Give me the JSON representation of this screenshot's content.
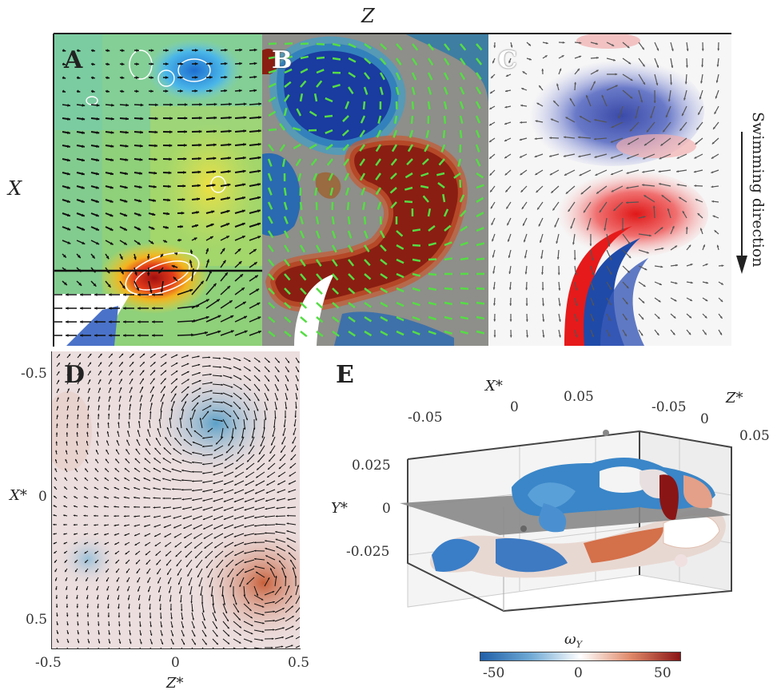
{
  "figure": {
    "top_axis_label": "Z",
    "left_axis_label": "X",
    "swimming_label": "Swimming direction"
  },
  "panels": {
    "A": {
      "label": "A"
    },
    "B": {
      "label": "B"
    },
    "C": {
      "label": "C"
    },
    "D": {
      "label": "D",
      "xlabel": "Z*",
      "ylabel": "X*",
      "xticks": [
        "-0.5",
        "0",
        "0.5"
      ],
      "yticks": [
        "-0.5",
        "0",
        "0.5"
      ]
    },
    "E": {
      "label": "E",
      "x_axis_label": "X*",
      "x_ticks": [
        "-0.05",
        "0",
        "0.05"
      ],
      "z_axis_label": "Z*",
      "z_ticks": [
        "-0.05",
        "0",
        "0.05"
      ],
      "y_axis_label": "Y*",
      "y_ticks": [
        "0.025",
        "0",
        "-0.025"
      ],
      "colorbar_label": "ω",
      "colorbar_sub": "Y",
      "colorbar_ticks": [
        "-50",
        "0",
        "50"
      ],
      "colorbar_colors": [
        "#1f5fa8",
        "#6fa9d4",
        "#ffffff",
        "#e08a6a",
        "#8a1515"
      ]
    }
  },
  "colors": {
    "vectors_dark": "#111111",
    "vectors_green": "#55dd44",
    "vectors_grey": "#555555"
  }
}
